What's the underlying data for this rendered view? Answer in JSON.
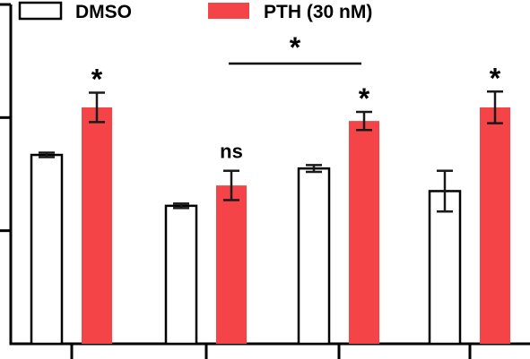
{
  "chart_data": {
    "type": "bar",
    "title": "",
    "xlabel": "",
    "ylabel": "",
    "categories": [
      "",
      "",
      "",
      ""
    ],
    "ylim": [
      0,
      3
    ],
    "grid": false,
    "legend_position": "top",
    "series": [
      {
        "name": "DMSO",
        "values": [
          1.67,
          1.22,
          1.55,
          1.35
        ],
        "errors": [
          0.02,
          0.02,
          0.03,
          0.18
        ],
        "fill": "#ffffff",
        "stroke": "#000000"
      },
      {
        "name": "PTH (30 nM)",
        "values": [
          2.09,
          1.4,
          1.97,
          2.09
        ],
        "errors": [
          0.13,
          0.13,
          0.08,
          0.14
        ],
        "fill": "#f44448",
        "stroke": "#f44448"
      }
    ],
    "annotations": [
      {
        "text": "*",
        "category": 0,
        "series": 1
      },
      {
        "text": "ns",
        "category": 1,
        "series": 1
      },
      {
        "text": "*",
        "category": 2,
        "series": 1
      },
      {
        "text": "*",
        "category": 3,
        "series": 1
      },
      {
        "text": "*",
        "category": 1,
        "series": "bracket"
      }
    ],
    "bracket": {
      "from_category": 1,
      "to_category": 2,
      "label": "*"
    }
  }
}
